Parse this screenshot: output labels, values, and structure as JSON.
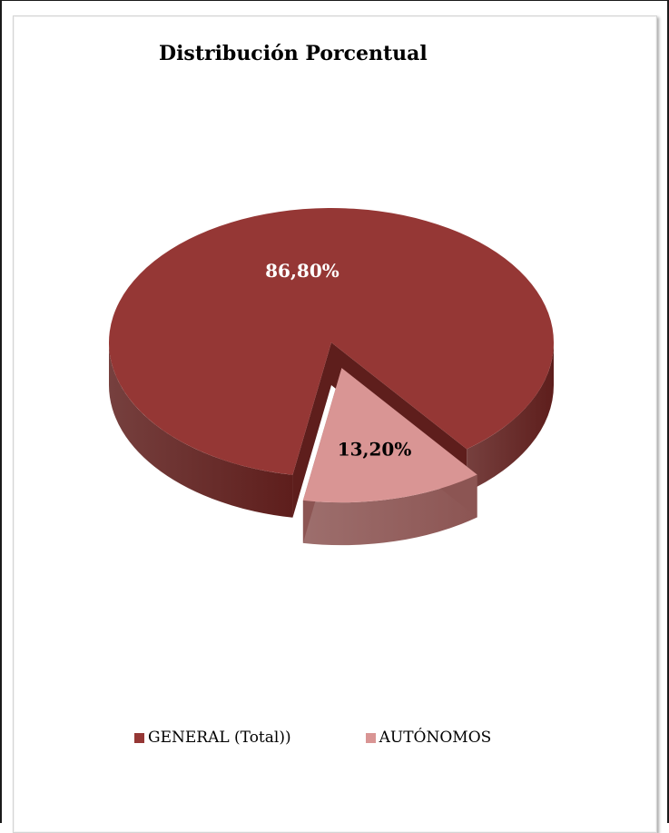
{
  "chart_data": {
    "type": "pie",
    "title": "Distribución Porcentual",
    "three_d": true,
    "legend_position": "bottom",
    "slices": [
      {
        "name": "GENERAL (Total))",
        "value": 86.8,
        "label": "86,80%",
        "color": "#953735",
        "side_color": "#5e1e1c",
        "label_color": "#ffffff"
      },
      {
        "name": "AUTÓNOMOS",
        "value": 13.2,
        "label": "13,20%",
        "color": "#d99594",
        "side_color": "#8c5553",
        "label_color": "#000000"
      }
    ]
  }
}
